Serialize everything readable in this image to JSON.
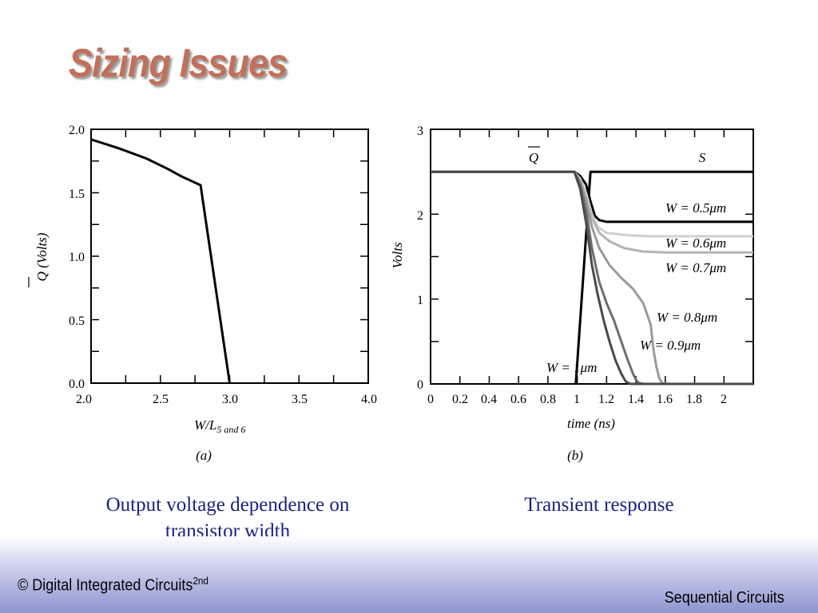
{
  "slide": {
    "title": "Sizing Issues",
    "caption_a": "Output voltage dependence on transistor width",
    "caption_b": "Transient response",
    "footer_left": "© Digital Integrated Circuits",
    "footer_left_sup": "2nd",
    "footer_right": "Sequential Circuits"
  },
  "chart_data": [
    {
      "type": "line",
      "sublabel": "(a)",
      "xlabel": "W/L",
      "xlabel_sub": "5 and 6",
      "ylabel": "Q (Volts)",
      "xlim": [
        2.0,
        4.0
      ],
      "ylim": [
        0.0,
        2.0
      ],
      "xticks": [
        "2.0",
        "2.5",
        "3.0",
        "3.5",
        "4.0"
      ],
      "yticks": [
        "0.0",
        "0.5",
        "1.0",
        "1.5",
        "2.0"
      ],
      "series": [
        {
          "color": "#000000",
          "x": [
            2.0,
            2.2,
            2.4,
            2.55,
            2.65,
            2.75,
            2.79,
            3.0
          ],
          "y": [
            1.92,
            1.85,
            1.77,
            1.69,
            1.63,
            1.58,
            1.56,
            0.0
          ]
        }
      ]
    },
    {
      "type": "line",
      "sublabel": "(b)",
      "xlabel": "time (ns)",
      "ylabel": "Volts",
      "xlim": [
        0,
        2.2
      ],
      "ylim": [
        0,
        3
      ],
      "xticks": [
        "0",
        "0.2",
        "0.4",
        "0.6",
        "0.8",
        "1",
        "1.2",
        "1.4",
        "1.6",
        "1.8",
        "2"
      ],
      "yticks": [
        "0",
        "1",
        "2",
        "3"
      ],
      "annotations": [
        "Q",
        "S",
        "W = 0.5μm",
        "W = 0.6μm",
        "W = 0.7μm",
        "W = 0.8μm",
        "W = 0.9μm",
        "W = 1μm"
      ],
      "series": [
        {
          "name": "S",
          "color": "#000000",
          "x": [
            0.99,
            1.09,
            1.1,
            2.2
          ],
          "y": [
            0,
            2.5,
            2.5,
            2.5
          ]
        },
        {
          "name": "W = 0.5μm",
          "color": "#000000",
          "x": [
            0,
            0.98,
            1.02,
            1.06,
            1.09,
            1.12,
            1.15,
            1.2,
            1.3,
            2.2
          ],
          "y": [
            2.5,
            2.5,
            2.45,
            2.35,
            2.15,
            1.98,
            1.93,
            1.91,
            1.91,
            1.91
          ]
        },
        {
          "name": "W = 0.6μm",
          "color": "#d0d0d0",
          "x": [
            0,
            0.98,
            1.02,
            1.06,
            1.1,
            1.14,
            1.2,
            1.35,
            1.5,
            2.2
          ],
          "y": [
            2.5,
            2.5,
            2.42,
            2.25,
            2.0,
            1.85,
            1.78,
            1.75,
            1.74,
            1.74
          ]
        },
        {
          "name": "W = 0.7μm",
          "color": "#b3b3b3",
          "x": [
            0,
            0.98,
            1.02,
            1.06,
            1.1,
            1.15,
            1.22,
            1.32,
            1.45,
            1.6,
            2.2
          ],
          "y": [
            2.5,
            2.5,
            2.4,
            2.2,
            1.95,
            1.78,
            1.68,
            1.6,
            1.56,
            1.55,
            1.55
          ]
        },
        {
          "name": "W = 0.8μm",
          "color": "#9a9a9a",
          "x": [
            0,
            0.98,
            1.02,
            1.06,
            1.1,
            1.15,
            1.22,
            1.3,
            1.38,
            1.45,
            1.5,
            1.52,
            1.54,
            1.56,
            1.58,
            1.62,
            2.2
          ],
          "y": [
            2.5,
            2.5,
            2.38,
            2.15,
            1.85,
            1.6,
            1.4,
            1.25,
            1.12,
            0.95,
            0.7,
            0.4,
            0.2,
            0.06,
            0.01,
            0,
            0
          ]
        },
        {
          "name": "W = 0.9μm",
          "color": "#6e6e6e",
          "x": [
            0,
            0.98,
            1.02,
            1.06,
            1.1,
            1.15,
            1.2,
            1.25,
            1.3,
            1.34,
            1.38,
            1.4,
            1.42,
            1.45,
            2.2
          ],
          "y": [
            2.5,
            2.5,
            2.35,
            2.05,
            1.6,
            1.2,
            0.95,
            0.75,
            0.5,
            0.3,
            0.12,
            0.05,
            0.01,
            0,
            0
          ]
        },
        {
          "name": "W = 1μm",
          "color": "#4a4a4a",
          "x": [
            0,
            0.98,
            1.02,
            1.06,
            1.1,
            1.14,
            1.18,
            1.22,
            1.26,
            1.3,
            1.33,
            1.36,
            2.2
          ],
          "y": [
            2.5,
            2.5,
            2.3,
            1.9,
            1.4,
            1.05,
            0.75,
            0.5,
            0.28,
            0.12,
            0.03,
            0,
            0
          ]
        }
      ]
    }
  ]
}
